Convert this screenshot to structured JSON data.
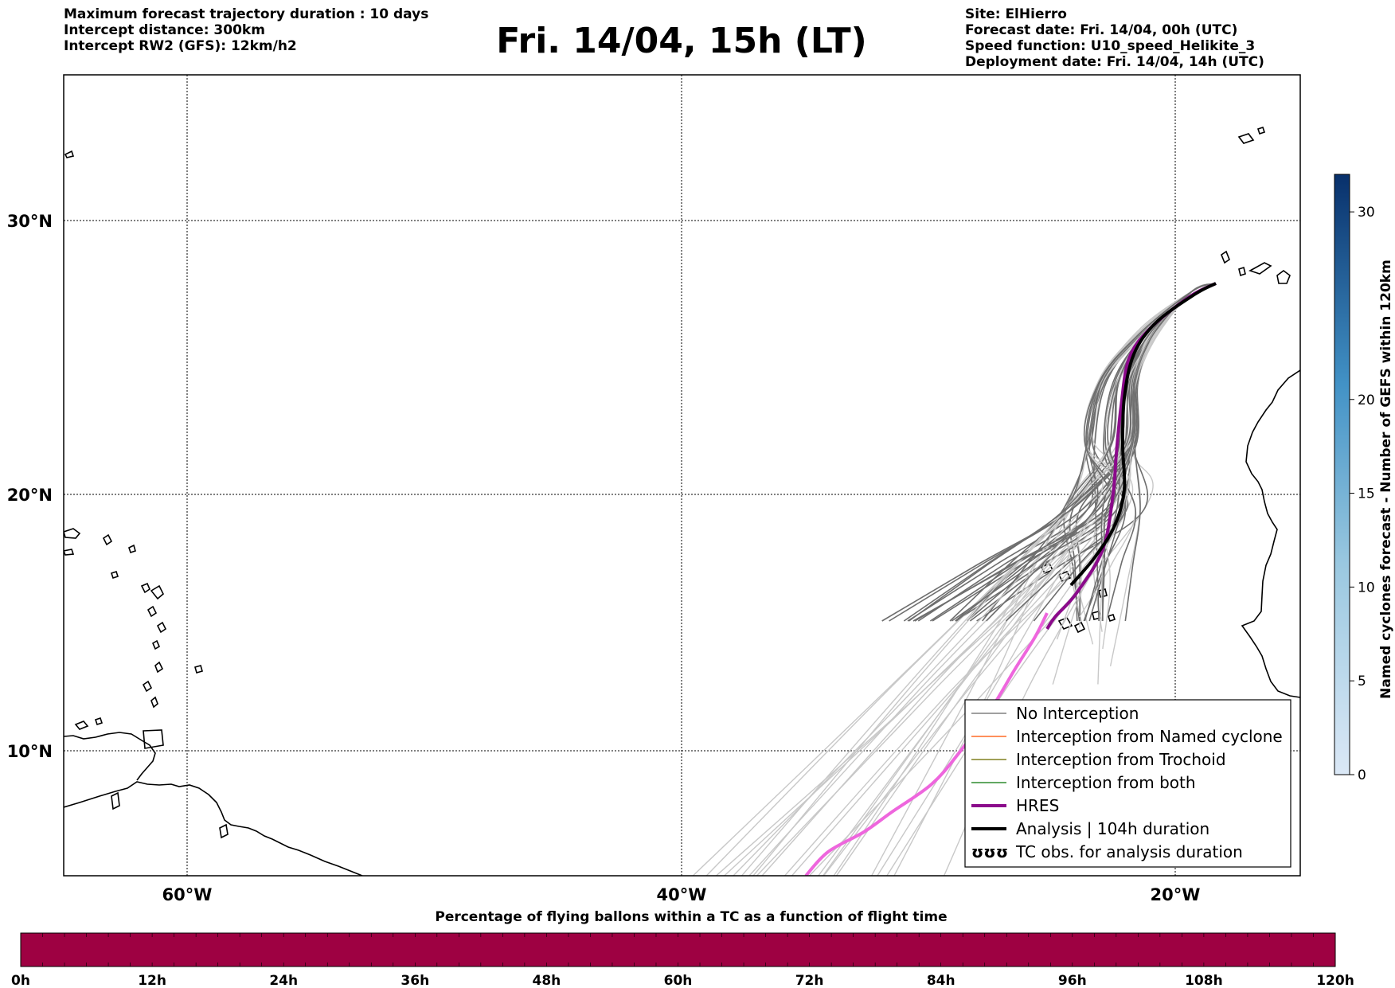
{
  "header": {
    "left_lines": [
      "Maximum forecast trajectory duration : 10 days",
      "Intercept distance: 300km",
      "Intercept RW2 (GFS):  12km/h2"
    ],
    "title": "Fri. 14/04, 15h (LT)",
    "right_lines": [
      "Site: ElHierro",
      "Forecast date: Fri. 14/04, 00h (UTC)",
      "Speed function: U10_speed_Helikite_3",
      "Deployment date: Fri. 14/04, 14h (UTC)"
    ]
  },
  "map": {
    "lat_ticks": [
      "30°N",
      "20°N",
      "10°N"
    ],
    "lon_ticks": [
      "60°W",
      "40°W",
      "20°W"
    ],
    "extent_lon": [
      -65,
      -15
    ],
    "extent_lat": [
      5.5,
      34.8
    ],
    "gridlines": true,
    "launch_site": {
      "lon": -18.0,
      "lat": 27.7
    }
  },
  "legend": {
    "placement": "lower-right",
    "items": [
      {
        "label": "No Interception",
        "color": "#808080",
        "style": "thin"
      },
      {
        "label": "Interception from Named cyclone",
        "color": "#ff6a26",
        "style": "thin"
      },
      {
        "label": "Interception from Trochoid",
        "color": "#808020",
        "style": "thin"
      },
      {
        "label": "Interception from both",
        "color": "#2e8b2e",
        "style": "thin"
      },
      {
        "label": "HRES",
        "color": "#8b0a8b",
        "style": "thick"
      },
      {
        "label": "Analysis | 104h duration",
        "color": "#000000",
        "style": "thick"
      },
      {
        "label": "TC obs. for analysis duration",
        "color": "#000000",
        "style": "symbol",
        "symbol": "ʊʊʊ"
      }
    ]
  },
  "colorbar_right": {
    "label": "Named cyclones forecast - Number of GEFS within 120km",
    "ticks": [
      "0",
      "5",
      "10",
      "15",
      "20",
      "30"
    ],
    "min": 0,
    "max": 32
  },
  "colorbar_bottom": {
    "title": "Percentage of flying ballons within a TC as a function of flight time",
    "ticks": [
      "0h",
      "12h",
      "24h",
      "36h",
      "48h",
      "60h",
      "72h",
      "84h",
      "96h",
      "108h",
      "120h"
    ],
    "fill_color": "#9e0142"
  },
  "colors": {
    "ensemble_near": "#6e6e6e",
    "ensemble_far": "#c8c8c8",
    "hres_near": "#8b0a8b",
    "hres_far": "#ee66dd",
    "analysis": "#000000"
  }
}
